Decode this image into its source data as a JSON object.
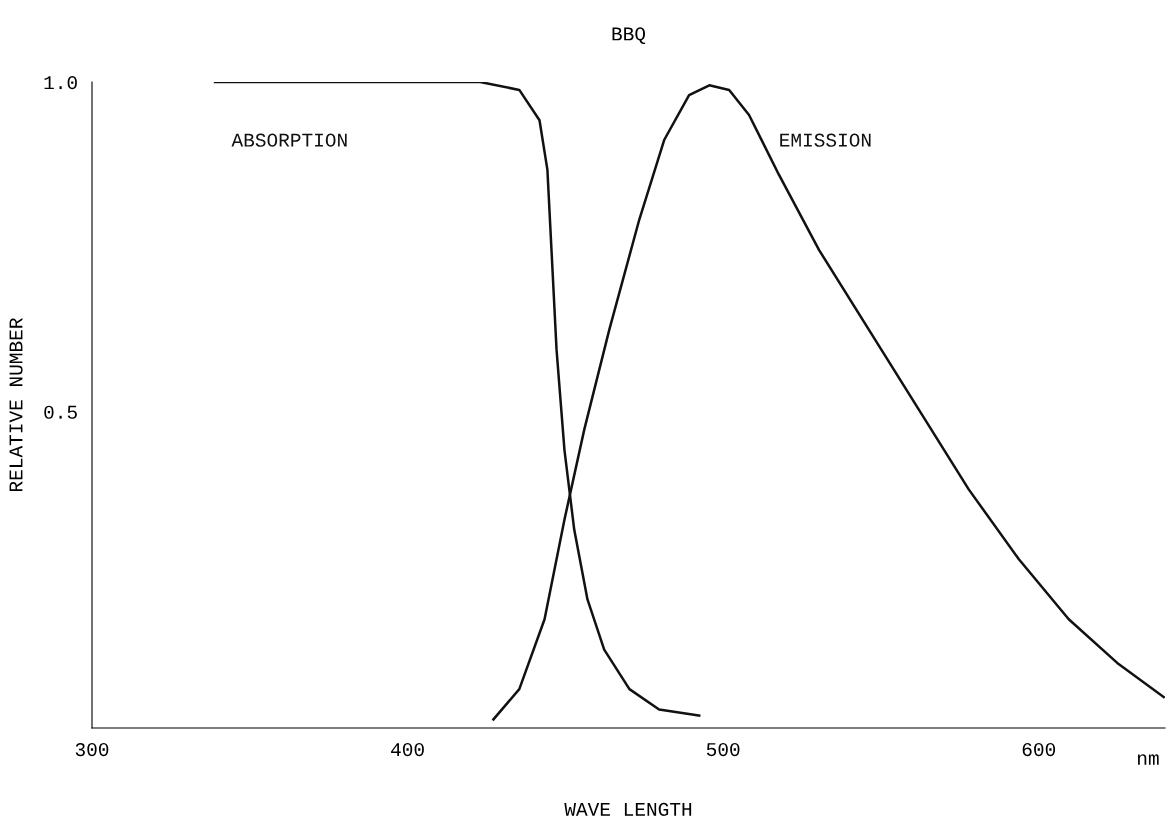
{
  "chart_data": {
    "type": "line",
    "title": "BBQ",
    "xlabel": "WAVE LENGTH",
    "ylabel": "RELATIVE NUMBER",
    "xlim": [
      300,
      640
    ],
    "xticks": [
      300,
      400,
      500,
      600
    ],
    "ylim": [
      0.02,
      1.0
    ],
    "yticks": [
      {
        "value": 0.5,
        "label": "0.5"
      },
      {
        "value": 1.0,
        "label": "1.0"
      }
    ],
    "grid": false,
    "legend": false,
    "marker": "none",
    "line_style": "solid",
    "annotations": [
      "nm"
    ],
    "series": [
      {
        "name": "ABSORPTION",
        "color": "#111111",
        "x": [
          339,
          423,
          435.4,
          441.8,
          444.3,
          445.6,
          447.2,
          449.7,
          452.8,
          457,
          462.3,
          470.3,
          479.7,
          492.4
        ],
        "values": [
          1.0,
          1.0,
          0.988,
          0.942,
          0.867,
          0.745,
          0.594,
          0.442,
          0.321,
          0.215,
          0.139,
          0.079,
          0.048,
          0.039
        ]
      },
      {
        "name": "EMISSION",
        "color": "#111111",
        "x": [
          427.2,
          435.4,
          443.4,
          449.7,
          456,
          463.9,
          473.4,
          481.3,
          489.2,
          495.6,
          501.9,
          508.2,
          517.7,
          530.4,
          546.2,
          562,
          577.8,
          593.7,
          609.5,
          625.3,
          639.6
        ],
        "values": [
          0.033,
          0.079,
          0.185,
          0.336,
          0.473,
          0.624,
          0.791,
          0.912,
          0.98,
          0.995,
          0.988,
          0.95,
          0.859,
          0.745,
          0.624,
          0.503,
          0.382,
          0.276,
          0.185,
          0.117,
          0.067
        ]
      }
    ]
  }
}
